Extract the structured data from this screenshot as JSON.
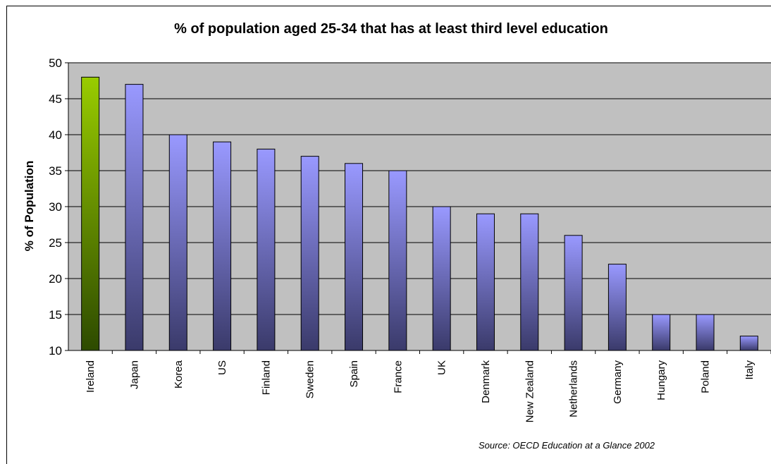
{
  "chart_data": {
    "type": "bar",
    "title": "% of population aged 25-34 that has at least third level education",
    "ylabel": "% of Population",
    "xlabel": "",
    "categories": [
      "Ireland",
      "Japan",
      "Korea",
      "US",
      "Finland",
      "Sweden",
      "Spain",
      "France",
      "UK",
      "Denmark",
      "New Zealand",
      "Netherlands",
      "Germany",
      "Hungary",
      "Poland",
      "Italy"
    ],
    "values": [
      48,
      47,
      40,
      39,
      38,
      37,
      36,
      35,
      30,
      29,
      29,
      26,
      22,
      15,
      15,
      12
    ],
    "ylim": [
      10,
      50
    ],
    "yticks": [
      10,
      15,
      20,
      25,
      30,
      35,
      40,
      45,
      50
    ],
    "grid": true,
    "highlight_category": "Ireland",
    "colors": {
      "plot_background": "#c0c0c0",
      "bar_top": "#9999ff",
      "bar_bottom": "#3a3a6a",
      "highlight_top": "#99cc00",
      "highlight_bottom": "#2d4a00"
    },
    "source": "Source: OECD Education at a Glance 2002"
  }
}
